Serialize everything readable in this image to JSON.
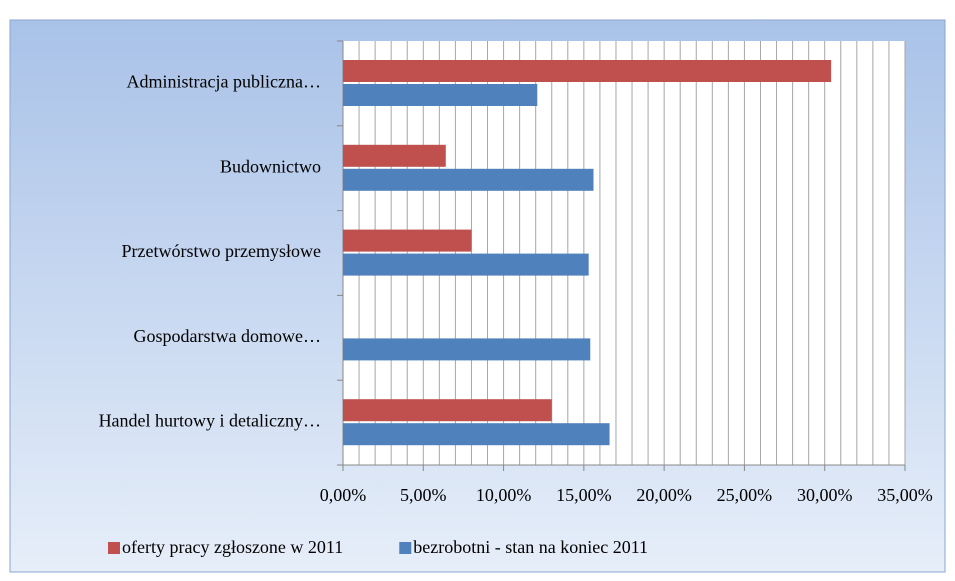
{
  "chart_data": {
    "type": "hbar",
    "categories": [
      "Administracja publiczna…",
      "Budownictwo",
      "Przetwórstwo przemysłowe",
      "Gospodarstwa domowe…",
      "Handel hurtowy i detaliczny…"
    ],
    "series": [
      {
        "name": "oferty pracy zgłoszone w 2011",
        "color": "#c0504d",
        "values": [
          30.4,
          6.4,
          8.0,
          null,
          13.0
        ]
      },
      {
        "name": "bezrobotni - stan na koniec 2011",
        "color": "#4f81bd",
        "values": [
          12.1,
          15.6,
          15.3,
          15.4,
          16.6
        ]
      }
    ],
    "xlim": [
      0,
      35
    ],
    "xticks": [
      {
        "value": 0,
        "label": "0,00%"
      },
      {
        "value": 5,
        "label": "5,00%"
      },
      {
        "value": 10,
        "label": "10,00%"
      },
      {
        "value": 15,
        "label": "15,00%"
      },
      {
        "value": 20,
        "label": "20,00%"
      },
      {
        "value": 25,
        "label": "25,00%"
      },
      {
        "value": 30,
        "label": "30,00%"
      },
      {
        "value": 35,
        "label": "35,00%"
      }
    ],
    "minor_xticks": [
      0,
      1,
      2,
      3,
      4,
      5,
      6,
      7,
      8,
      9,
      10,
      11,
      12,
      13,
      14,
      15,
      16,
      17,
      18,
      19,
      20,
      21,
      22,
      23,
      24,
      25,
      26,
      27,
      28,
      29,
      30,
      31,
      32,
      33,
      34,
      35
    ],
    "grid": true,
    "legend": "bottom"
  }
}
